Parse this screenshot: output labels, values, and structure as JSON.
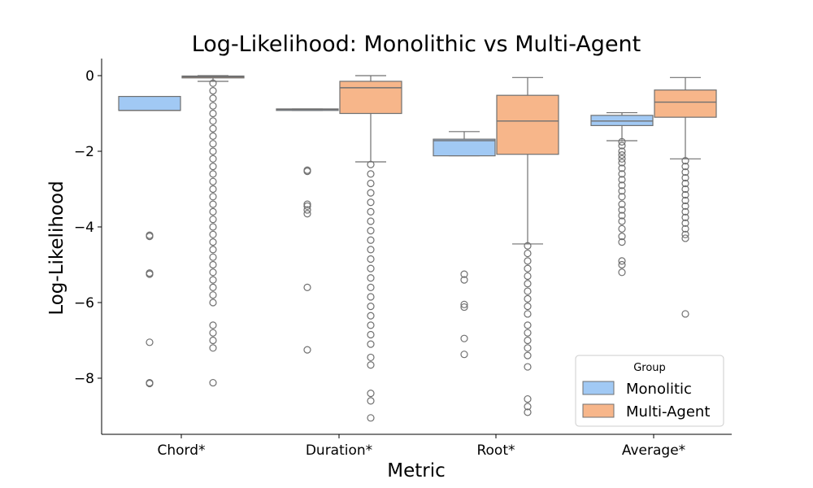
{
  "chart_data": {
    "type": "boxplot",
    "title": "Log-Likelihood: Monolithic vs Multi-Agent",
    "xlabel": "Metric",
    "ylabel": "Log-Likelihood",
    "categories": [
      "Chord*",
      "Duration*",
      "Root*",
      "Average*"
    ],
    "yticks": [
      0,
      -2,
      -4,
      -6,
      -8
    ],
    "ylim": [
      -9.5,
      0.45
    ],
    "grid": false,
    "legend": {
      "title": "Group",
      "placement": "bottom-right"
    },
    "series": [
      {
        "name": "Monolitic",
        "color": "#a1c9f4",
        "boxes": [
          {
            "q1": -0.92,
            "median": -0.92,
            "q3": -0.55,
            "whisker_low": -0.92,
            "whisker_high": -0.55,
            "outliers": [
              -4.22,
              -4.25,
              -5.22,
              -5.25,
              -7.05,
              -8.12,
              -8.14
            ]
          },
          {
            "q1": -0.92,
            "median": -0.89,
            "q3": -0.88,
            "whisker_low": -0.92,
            "whisker_high": -0.88,
            "outliers": [
              -2.5,
              -2.53,
              -3.4,
              -3.45,
              -3.55,
              -3.65,
              -5.6,
              -7.25
            ]
          },
          {
            "q1": -2.12,
            "median": -1.72,
            "q3": -1.68,
            "whisker_low": -2.12,
            "whisker_high": -1.48,
            "outliers": [
              -5.25,
              -5.4,
              -6.05,
              -6.12,
              -6.95,
              -7.37
            ]
          },
          {
            "q1": -1.32,
            "median": -1.2,
            "q3": -1.05,
            "whisker_low": -1.72,
            "whisker_high": -0.98,
            "outliers": [
              -1.75,
              -1.85,
              -2.0,
              -2.1,
              -2.2,
              -2.3,
              -2.45,
              -2.6,
              -2.75,
              -2.9,
              -3.05,
              -3.2,
              -3.4,
              -3.55,
              -3.7,
              -3.85,
              -4.05,
              -4.25,
              -4.4,
              -4.9,
              -5.0,
              -5.2
            ]
          }
        ]
      },
      {
        "name": "Multi-Agent",
        "color": "#f7b68a",
        "boxes": [
          {
            "q1": -0.06,
            "median": -0.03,
            "q3": -0.01,
            "whisker_low": -0.15,
            "whisker_high": 0,
            "outliers": [
              -0.2,
              -0.4,
              -0.6,
              -0.8,
              -1.0,
              -1.2,
              -1.4,
              -1.6,
              -1.8,
              -2.0,
              -2.2,
              -2.4,
              -2.6,
              -2.8,
              -3.0,
              -3.2,
              -3.4,
              -3.6,
              -3.8,
              -4.0,
              -4.2,
              -4.4,
              -4.6,
              -4.8,
              -5.0,
              -5.2,
              -5.4,
              -5.6,
              -5.8,
              -6.0,
              -6.6,
              -6.8,
              -7.0,
              -7.2,
              -8.12
            ]
          },
          {
            "q1": -1.0,
            "median": -0.32,
            "q3": -0.15,
            "whisker_low": -2.28,
            "whisker_high": 0,
            "outliers": [
              -2.35,
              -2.6,
              -2.85,
              -3.1,
              -3.35,
              -3.6,
              -3.85,
              -4.1,
              -4.35,
              -4.6,
              -4.85,
              -5.1,
              -5.35,
              -5.6,
              -5.85,
              -6.1,
              -6.35,
              -6.6,
              -6.85,
              -7.1,
              -7.45,
              -7.65,
              -8.4,
              -8.6,
              -9.05
            ]
          },
          {
            "q1": -2.08,
            "median": -1.2,
            "q3": -0.52,
            "whisker_low": -4.45,
            "whisker_high": -0.05,
            "outliers": [
              -4.5,
              -4.7,
              -4.9,
              -5.1,
              -5.3,
              -5.5,
              -5.7,
              -5.9,
              -6.1,
              -6.3,
              -6.6,
              -6.8,
              -7.0,
              -7.2,
              -7.4,
              -7.7,
              -8.55,
              -8.75,
              -8.9
            ]
          },
          {
            "q1": -1.1,
            "median": -0.7,
            "q3": -0.38,
            "whisker_low": -2.2,
            "whisker_high": -0.05,
            "outliers": [
              -2.25,
              -2.4,
              -2.55,
              -2.7,
              -2.85,
              -3.0,
              -3.15,
              -3.3,
              -3.45,
              -3.6,
              -3.75,
              -3.9,
              -4.05,
              -4.2,
              -4.3,
              -6.3
            ]
          }
        ]
      }
    ]
  }
}
